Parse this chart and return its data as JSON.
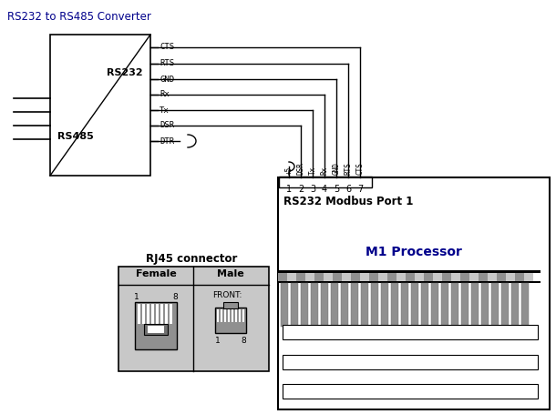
{
  "title": "RS232 to RS485 Converter",
  "title_color": "#00008B",
  "bg_color": "#ffffff",
  "rs232_label": "RS232",
  "rs485_label": "RS485",
  "pin_labels_left": [
    "CTS",
    "RTS",
    "GND",
    "Rx",
    "Tx",
    "DSR",
    "DTR"
  ],
  "pin_labels_bottom": [
    "+5",
    "DSR",
    "Tx",
    "Rx",
    "GND",
    "RTS",
    "CTS"
  ],
  "pin_numbers": [
    "1",
    "2",
    "3",
    "4",
    "5",
    "6",
    "7"
  ],
  "modbus_label": "RS232 Modbus Port 1",
  "processor_label": "M1 Processor",
  "processor_label_color": "#00008B",
  "rj45_title": "RJ45 connector",
  "rj45_female": "Female",
  "rj45_male": "Male",
  "rj45_front": "FRONT:",
  "line_color": "#000000",
  "gray_color": "#808080",
  "light_gray": "#C8C8C8",
  "dark_gray": "#505050",
  "pin_gray": "#909090"
}
